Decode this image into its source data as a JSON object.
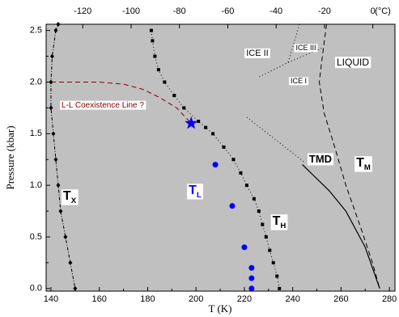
{
  "chart_data": {
    "type": "line",
    "x_label": "T (K)",
    "y_label": "Pressure (kbar)",
    "x2_label": "(°C)",
    "xlim": [
      138,
      282.3
    ],
    "xticks": [
      140,
      160,
      180,
      200,
      220,
      240,
      260,
      280
    ],
    "x2lim": [
      -135.15,
      9.15
    ],
    "x2ticks": [
      -120,
      -100,
      -80,
      -60,
      -40,
      -20,
      0
    ],
    "ylim": [
      -0.025,
      2.56
    ],
    "yticks": [
      {
        "value": 0,
        "label": "0.0"
      },
      {
        "value": 0.5,
        "label": "0.5"
      },
      {
        "value": 1,
        "label": "1.0"
      },
      {
        "value": 1.5,
        "label": "1.5"
      },
      {
        "value": 2,
        "label": "2.0"
      },
      {
        "value": 2.5,
        "label": "2.5"
      }
    ],
    "background": "#c0c0c0",
    "series": [
      {
        "color": "#000000",
        "style": "dashdot",
        "marker": "diamond",
        "x": [
          150,
          148,
          146,
          144,
          143,
          142,
          141,
          140,
          140,
          140.5,
          142,
          143
        ],
        "y": [
          0,
          0.25,
          0.5,
          0.75,
          1.0,
          1.25,
          1.5,
          1.75,
          2.0,
          2.25,
          2.5,
          2.56
        ]
      },
      {
        "color": "#000000",
        "style": "dotted",
        "marker": "square",
        "x": [
          234.5,
          233.5,
          232,
          230.5,
          229,
          227.5,
          226,
          224,
          221,
          218.5,
          215.5,
          211.5,
          207,
          204,
          201,
          195,
          191,
          187,
          184.5,
          183,
          182,
          181.5
        ],
        "y": [
          0,
          0.12,
          0.25,
          0.37,
          0.5,
          0.62,
          0.75,
          0.87,
          1.0,
          1.12,
          1.25,
          1.37,
          1.5,
          1.56,
          1.62,
          1.75,
          1.87,
          2.0,
          2.12,
          2.25,
          2.4,
          2.5
        ]
      },
      {
        "color": "#0000ff",
        "style": "none",
        "marker": "circle",
        "x": [
          223,
          223,
          223,
          220,
          215,
          208
        ],
        "y": [
          0,
          0.1,
          0.2,
          0.4,
          0.8,
          1.2
        ]
      },
      {
        "color": "#800000",
        "style": "dashed",
        "marker": "none",
        "x": [
          140,
          160,
          170,
          178,
          185,
          192,
          198
        ],
        "y": [
          2.0,
          2.0,
          1.98,
          1.93,
          1.85,
          1.75,
          1.6
        ]
      },
      {
        "color": "#0000ff",
        "style": "none",
        "marker": "star",
        "x": [
          198
        ],
        "y": [
          1.6
        ]
      },
      {
        "color": "#000000",
        "style": "solid",
        "marker": "none",
        "x": [
          244,
          255,
          262,
          270,
          276
        ],
        "y": [
          1.2,
          0.95,
          0.75,
          0.4,
          0
        ]
      },
      {
        "color": "#000000",
        "style": "dashed",
        "marker": "none",
        "x": [
          254,
          252,
          251,
          253,
          257,
          262,
          268,
          273,
          276
        ],
        "y": [
          2.56,
          2.2,
          2.0,
          1.7,
          1.4,
          1.0,
          0.6,
          0.25,
          0
        ]
      },
      {
        "color": "#000000",
        "style": "dotted",
        "marker": "none",
        "x": [
          242.8,
          238.1,
          226.1
        ],
        "y": [
          2.56,
          2.19,
          2.05
        ]
      },
      {
        "color": "#000000",
        "style": "dotted",
        "marker": "none",
        "x": [
          238.1,
          252.2
        ],
        "y": [
          2.19,
          2.33
        ]
      },
      {
        "color": "#000000",
        "style": "dotted",
        "marker": "none",
        "x": [
          221,
          244.5
        ],
        "y": [
          1.66,
          1.23
        ]
      }
    ],
    "annotations": [
      {
        "text": "ICE II"
      },
      {
        "text": "ICE III"
      },
      {
        "text": "ICE I"
      },
      {
        "text": "LIQUID"
      },
      {
        "text": "L-L Coexistence Line ?"
      },
      {
        "text": "TMD"
      },
      {
        "text": "T",
        "sub": "X"
      },
      {
        "text": "T",
        "sub": "L"
      },
      {
        "text": "T",
        "sub": "H"
      },
      {
        "text": "T",
        "sub": "M"
      }
    ]
  }
}
